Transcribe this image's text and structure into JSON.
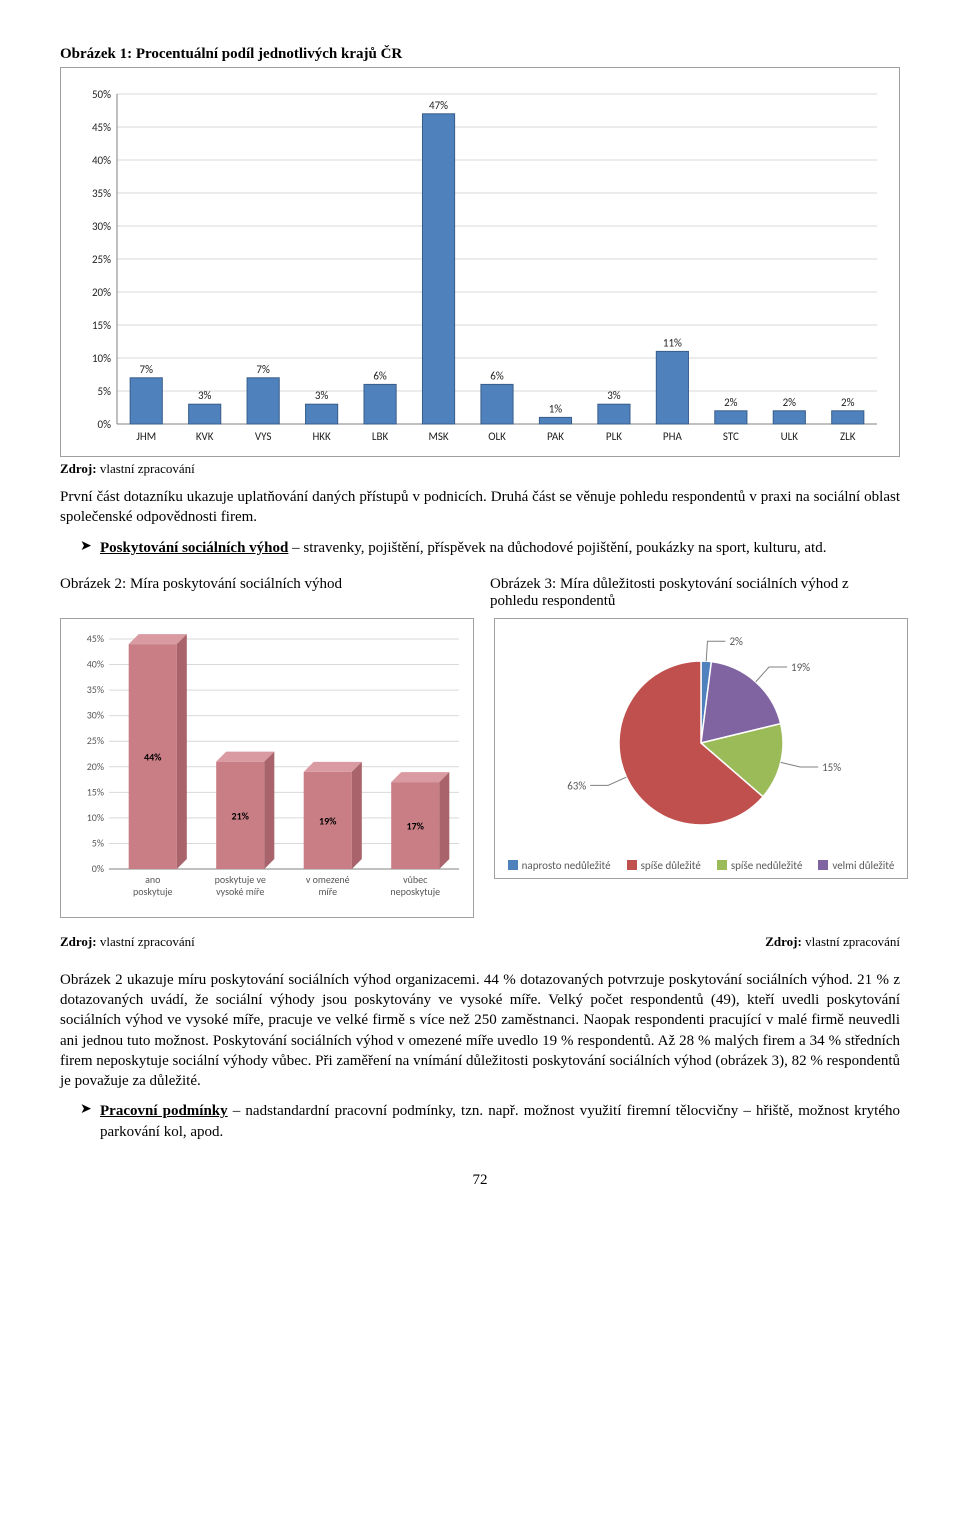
{
  "titles": {
    "fig1": "Obrázek 1: Procentuální podíl jednotlivých krajů ČR",
    "fig2": "Obrázek 2: Míra poskytování sociálních výhod",
    "fig3": "Obrázek 3: Míra důležitosti poskytování sociálních výhod z pohledu respondentů"
  },
  "source_label": "Zdroj:",
  "source_text": "vlastní zpracování",
  "paragraphs": {
    "p1": "První část dotazníku ukazuje uplatňování daných přístupů v podnicích. Druhá část se věnuje pohledu respondentů v praxi na sociální oblast společenské odpovědnosti firem.",
    "p2": "Obrázek 2 ukazuje míru poskytování sociálních výhod organizacemi. 44 % dotazovaných potvrzuje poskytování sociálních výhod. 21 % z dotazovaných uvádí, že sociální výhody jsou poskytovány ve vysoké míře. Velký počet respondentů (49), kteří uvedli poskytování sociálních výhod ve vysoké míře, pracuje ve velké firmě s více než 250 zaměstnanci. Naopak respondenti pracující v malé firmě neuvedli ani jednou tuto možnost. Poskytování sociálních výhod v omezené míře uvedlo 19 % respondentů. Až 28 % malých firem a 34 % středních firem neposkytuje sociální výhody vůbec. Při zaměření na vnímání důležitosti poskytování sociálních výhod (obrázek 3), 82 % respondentů je považuje za důležité."
  },
  "bullets": {
    "b1_head": "Poskytování sociálních výhod",
    "b1_tail": " – stravenky, pojištění, příspěvek na důchodové pojištění, poukázky na sport, kulturu, atd.",
    "b2_head": "Pracovní podmínky",
    "b2_tail": " – nadstandardní pracovní podmínky, tzn. např. možnost využití firemní tělocvičny – hřiště, možnost krytého parkování kol, apod."
  },
  "page_number": "72",
  "chart1": {
    "type": "bar",
    "categories": [
      "JHM",
      "KVK",
      "VYS",
      "HKK",
      "LBK",
      "MSK",
      "OLK",
      "PAK",
      "PLK",
      "PHA",
      "STC",
      "ULK",
      "ZLK"
    ],
    "values": [
      7,
      3,
      7,
      3,
      6,
      47,
      6,
      1,
      3,
      11,
      2,
      2,
      2
    ],
    "bar_color": "#4f81bd",
    "bar_border": "#385d8a",
    "text_color": "#222222",
    "grid_color": "#d9d9d9",
    "axis_color": "#808080",
    "font_family": "Calibri, Arial, sans-serif",
    "ymax": 50,
    "ytick_step": 5,
    "label_fontsize": 11,
    "tick_fontsize": 11
  },
  "chart2": {
    "type": "bar3d",
    "categories": [
      "ano poskytuje",
      "poskytuje ve vysoké míře",
      "v omezené míře",
      "vůbec neposkytuje"
    ],
    "values": [
      44,
      21,
      19,
      17
    ],
    "bar_color": "#c97e86",
    "bar_top": "#d99aa1",
    "bar_side": "#a9636b",
    "grid_color": "#d9d9d9",
    "axis_color": "#808080",
    "text_color": "#595959",
    "font_family": "Calibri, Arial, sans-serif",
    "ymax": 45,
    "ytick_step": 5,
    "label_fontsize": 10,
    "tick_fontsize": 10
  },
  "chart3": {
    "type": "pie",
    "slices": [
      {
        "label": "naprosto nedůležité",
        "value": 2,
        "color": "#4f81bd"
      },
      {
        "label": "spíše důležité",
        "value": 63,
        "color": "#c0504d"
      },
      {
        "label": "spíše nedůležité",
        "value": 15,
        "color": "#9bbb59"
      },
      {
        "label": "velmi důležité",
        "value": 19,
        "color": "#8064a2"
      }
    ],
    "pie_order": [
      "naprosto nedůležité",
      "velmi důležité",
      "spíše nedůležité",
      "spíše důležité"
    ],
    "callout_values": {
      "naprosto nedůležité": "2%",
      "velmi důležité": "19%",
      "spíše nedůležité": "15%",
      "spíše důležité": "63%"
    },
    "border_color": "#ffffff",
    "text_color": "#595959",
    "font_family": "Calibri, Arial, sans-serif",
    "label_fontsize": 11
  }
}
